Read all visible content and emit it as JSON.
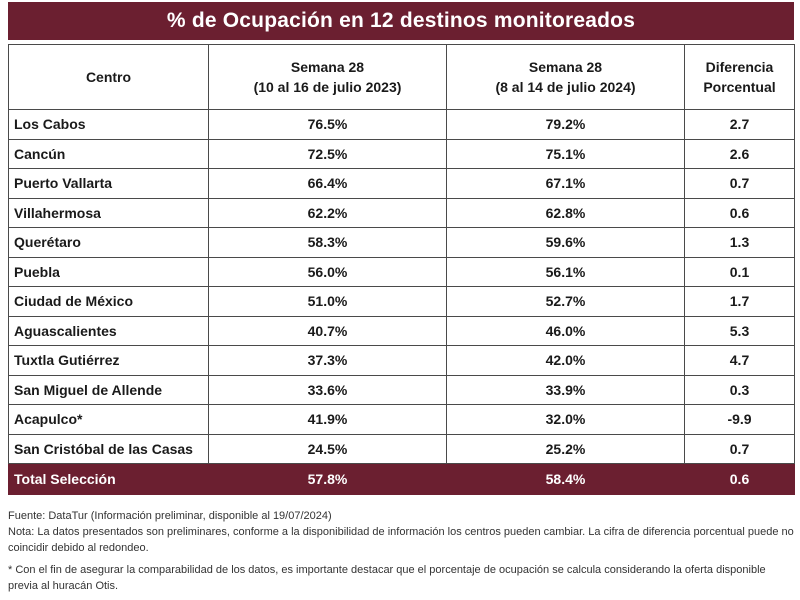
{
  "title": "% de Ocupación en 12 destinos monitoreados",
  "headers": {
    "centro": "Centro",
    "week1_line1": "Semana 28",
    "week1_line2": "(10 al 16 de julio 2023)",
    "week2_line1": "Semana 28",
    "week2_line2": "(8 al 14 de julio 2024)",
    "diff_line1": "Diferencia",
    "diff_line2": "Porcentual"
  },
  "rows": [
    {
      "centro": "Los Cabos",
      "w2023": "76.5%",
      "w2024": "79.2%",
      "diff": "2.7"
    },
    {
      "centro": "Cancún",
      "w2023": "72.5%",
      "w2024": "75.1%",
      "diff": "2.6"
    },
    {
      "centro": "Puerto Vallarta",
      "w2023": "66.4%",
      "w2024": "67.1%",
      "diff": "0.7"
    },
    {
      "centro": "Villahermosa",
      "w2023": "62.2%",
      "w2024": "62.8%",
      "diff": "0.6"
    },
    {
      "centro": "Querétaro",
      "w2023": "58.3%",
      "w2024": "59.6%",
      "diff": "1.3"
    },
    {
      "centro": "Puebla",
      "w2023": "56.0%",
      "w2024": "56.1%",
      "diff": "0.1"
    },
    {
      "centro": "Ciudad de México",
      "w2023": "51.0%",
      "w2024": "52.7%",
      "diff": "1.7"
    },
    {
      "centro": "Aguascalientes",
      "w2023": "40.7%",
      "w2024": "46.0%",
      "diff": "5.3"
    },
    {
      "centro": "Tuxtla Gutiérrez",
      "w2023": "37.3%",
      "w2024": "42.0%",
      "diff": "4.7"
    },
    {
      "centro": "San Miguel de Allende",
      "w2023": "33.6%",
      "w2024": "33.9%",
      "diff": "0.3"
    },
    {
      "centro": "Acapulco*",
      "w2023": "41.9%",
      "w2024": "32.0%",
      "diff": "-9.9"
    },
    {
      "centro": "San Cristóbal de las Casas",
      "w2023": "24.5%",
      "w2024": "25.2%",
      "diff": "0.7"
    }
  ],
  "total": {
    "centro": "Total Selección",
    "w2023": "57.8%",
    "w2024": "58.4%",
    "diff": "0.6"
  },
  "notes": {
    "source": "Fuente: DataTur (Información preliminar, disponible al 19/07/2024)",
    "note": "Nota: La datos presentados son preliminares, conforme a la disponibilidad de información los centros pueden cambiar. La cifra de diferencia porcentual puede no coincidir debido al redondeo.",
    "footnote": "* Con el fin de asegurar la comparabilidad de los datos, es importante destacar que el porcentaje de ocupación se calcula considerando la oferta disponible previa al huracán Otis."
  },
  "colors": {
    "header_bg": "#6b1f30",
    "text": "#1a1a1a"
  }
}
